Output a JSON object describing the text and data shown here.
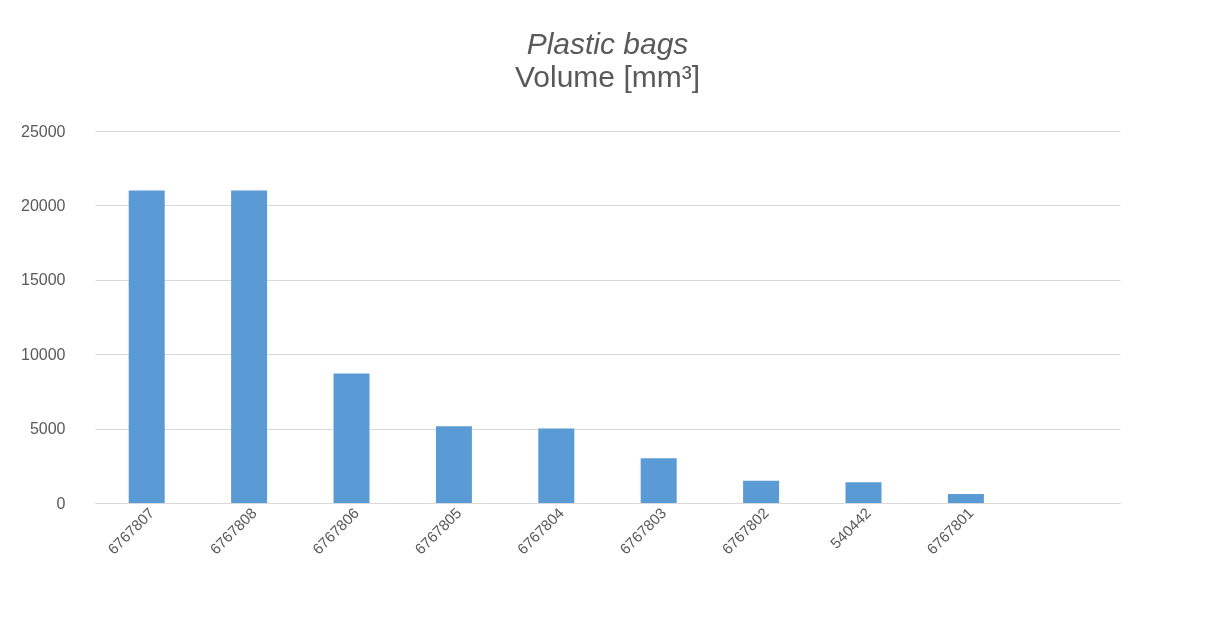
{
  "chart_data": {
    "type": "bar",
    "title": "Plastic bags",
    "subtitle": "Volume [mm³]",
    "categories": [
      "6767807",
      "6767808",
      "6767806",
      "6767805",
      "6767804",
      "6767803",
      "6767802",
      "540442",
      "6767801",
      null
    ],
    "values": [
      21000,
      21000,
      8700,
      5150,
      5000,
      3000,
      1500,
      1400,
      600,
      null
    ],
    "color": "#5b9bd5",
    "ylim": [
      0,
      25000
    ],
    "yticks": [
      0,
      5000,
      10000,
      15000,
      20000,
      25000
    ],
    "grid": "y"
  }
}
